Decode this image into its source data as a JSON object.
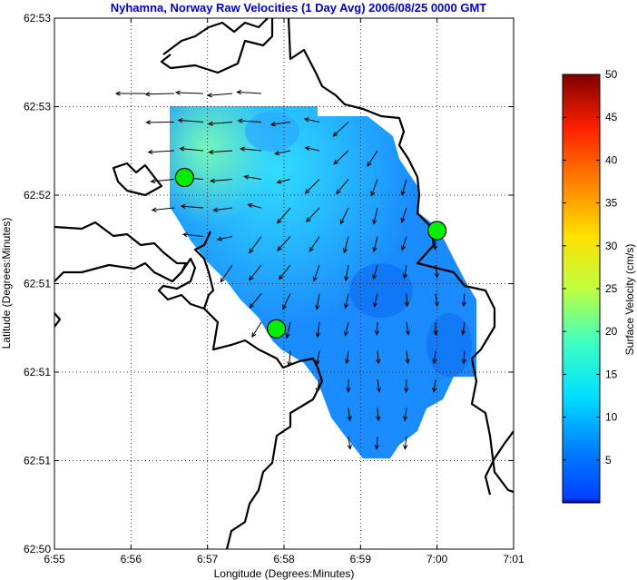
{
  "chart_data": {
    "type": "heatmap",
    "title": "Nyhamna, Norway Raw Velocities (1 Day Avg) 2006/08/25 0000 GMT",
    "xlabel": "Longitude (Degrees:Minutes)",
    "ylabel": "Latitude (Degrees:Minutes)",
    "x_ticks": [
      "6:55",
      "6:56",
      "6:57",
      "6:58",
      "6:59",
      "7:00",
      "7:01"
    ],
    "y_ticks": [
      "62:53",
      "62:53",
      "62:52",
      "62:51",
      "62:51",
      "62:51",
      "62:50"
    ],
    "colorbar": {
      "label": "Surface Velocity (cm/s)",
      "min": 0,
      "max": 50,
      "ticks": [
        "5",
        "10",
        "15",
        "20",
        "25",
        "30",
        "35",
        "40",
        "45",
        "50"
      ],
      "colormap": "jet"
    },
    "grid": true,
    "stations": [
      {
        "lon_min": 56.7,
        "lat_frac": 0.7
      },
      {
        "lon_min": 57.9,
        "lat_frac": 0.415
      },
      {
        "lon_min": 60.0,
        "lat_frac": 0.6
      }
    ],
    "velocity_field_cm_s": {
      "description_range": [
        3,
        15
      ],
      "dominant_direction": "westward in northwest, southward in southeast"
    }
  }
}
